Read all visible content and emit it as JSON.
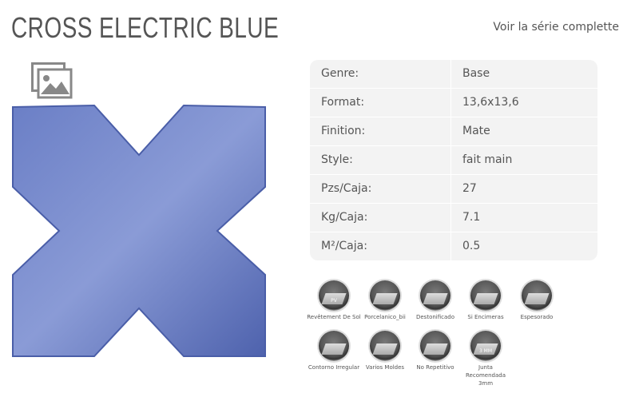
{
  "header": {
    "title": "CROSS ELECTRIC BLUE",
    "series_link": "Voir la série complette"
  },
  "gallery": {
    "icon": "image-gallery-icon"
  },
  "product": {
    "tile_color": "#5b6fb8"
  },
  "specs": [
    {
      "label": "Genre:",
      "value": "Base"
    },
    {
      "label": "Format:",
      "value": "13,6x13,6"
    },
    {
      "label": "Finition:",
      "value": "Mate"
    },
    {
      "label": "Style:",
      "value": "fait main"
    },
    {
      "label": "Pzs/Caja:",
      "value": "27"
    },
    {
      "label": "Kg/Caja:",
      "value": "7.1"
    },
    {
      "label": "M²/Caja:",
      "value": "0.5"
    }
  ],
  "features": [
    {
      "label": "Revêtement De Sol",
      "badge": "PV"
    },
    {
      "label": "Porcelanico_bii"
    },
    {
      "label": "Destonificado"
    },
    {
      "label": "Si Encimeras"
    },
    {
      "label": "Espesorado"
    },
    {
      "label": "Contorno Irregular"
    },
    {
      "label": "Varios Moldes"
    },
    {
      "label": "No Repetitivo"
    },
    {
      "label": "Junta Recomendada 3mm",
      "badge": "3 MM"
    }
  ]
}
